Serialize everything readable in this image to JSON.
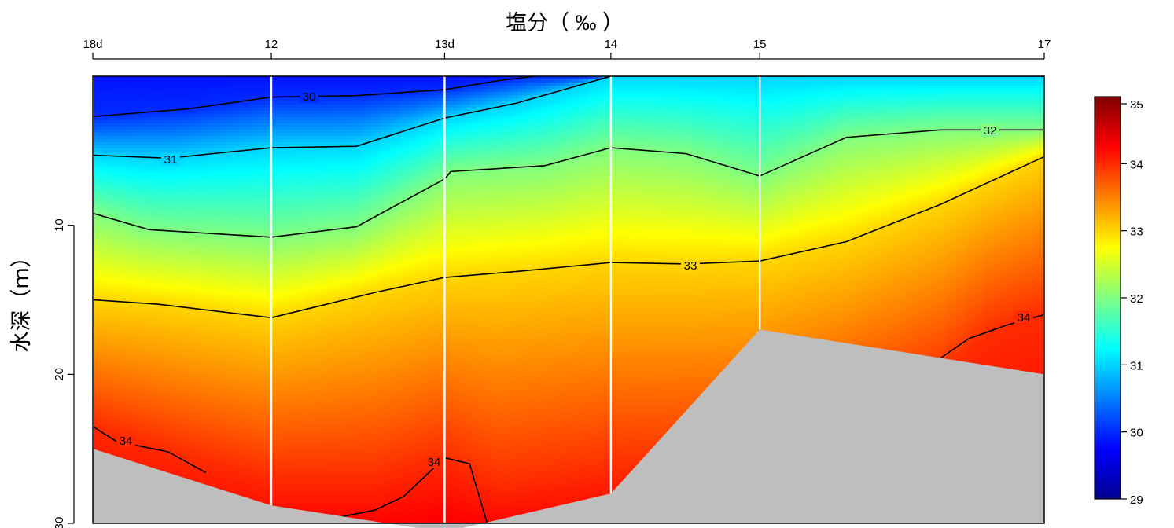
{
  "chart_data": {
    "type": "heatmap",
    "title": "塩分（ ‰ ）",
    "ylabel": "水深（ｍ）",
    "stations": [
      "18d",
      "12",
      "13d",
      "14",
      "15",
      "17"
    ],
    "station_positions": [
      0,
      1.895,
      3.735,
      5.5,
      7.08,
      10.1
    ],
    "xlim": [
      0,
      10.1
    ],
    "ylim": [
      30,
      0
    ],
    "y_ticks": [
      10,
      20,
      30
    ],
    "seafloor_depth": [
      25.0,
      28.8,
      30.6,
      28.0,
      17.0,
      20.0
    ],
    "contour_levels": [
      30,
      31,
      32,
      33,
      34
    ],
    "contour_lines": [
      {
        "level": 30,
        "label": "30",
        "x": [
          0,
          1.0,
          1.895,
          2.8,
          3.735,
          4.3,
          4.7
        ],
        "y": [
          2.7,
          2.2,
          1.4,
          1.3,
          0.9,
          0.3,
          0
        ]
      },
      {
        "level": 31,
        "label": "31",
        "x": [
          0,
          0.8,
          1.895,
          2.8,
          3.735,
          4.5,
          5.5,
          6.3,
          7.08,
          8.0,
          9.0,
          10.1
        ],
        "y": [
          5.3,
          5.5,
          4.8,
          4.7,
          2.8,
          1.8,
          0,
          0,
          0,
          0,
          0,
          0
        ]
      },
      {
        "level": 32,
        "label": "32",
        "x": [
          0,
          0.6,
          1.895,
          2.8,
          3.735,
          3.8,
          4.8,
          5.5,
          6.3,
          7.08,
          8.0,
          9.0,
          10.1
        ],
        "y": [
          9.2,
          10.3,
          10.8,
          10.1,
          6.9,
          6.4,
          6.0,
          4.8,
          5.2,
          6.7,
          4.1,
          3.6,
          3.6
        ]
      },
      {
        "level": 33,
        "label": "33",
        "x": [
          0,
          0.7,
          1.895,
          3.0,
          3.735,
          4.5,
          5.5,
          6.3,
          7.08,
          8.0,
          9.0,
          10.1
        ],
        "y": [
          15.0,
          15.3,
          16.2,
          14.5,
          13.5,
          13.1,
          12.5,
          12.6,
          12.4,
          11.1,
          8.6,
          5.4
        ]
      },
      {
        "level": 34,
        "label": "34",
        "x": [
          0,
          0.25,
          0.8,
          1.2
        ],
        "y": [
          23.5,
          24.5,
          25.2,
          26.6
        ]
      },
      {
        "level": 34,
        "label": "34",
        "x": [
          2.45,
          3.0,
          3.3,
          3.735,
          4.0,
          4.2
        ],
        "y": [
          29.8,
          29.1,
          28.2,
          25.6,
          26.0,
          30.3
        ]
      },
      {
        "level": 34,
        "label": "34",
        "x": [
          8.98,
          9.3,
          9.7,
          10.1
        ],
        "y": [
          19.0,
          17.6,
          16.7,
          16.0
        ]
      }
    ],
    "colorbar": {
      "min": 29,
      "max": 35,
      "ticks": [
        29,
        30,
        31,
        32,
        33,
        34,
        35
      ],
      "colormap": [
        "#00008F",
        "#0000FF",
        "#0080FF",
        "#00FFFF",
        "#80FF80",
        "#FFFF00",
        "#FF8000",
        "#FF0000",
        "#800000"
      ]
    },
    "colors": {
      "seafloor": "#BEBEBE",
      "station_line": "#FFFFFF",
      "contour": "#000000"
    }
  }
}
